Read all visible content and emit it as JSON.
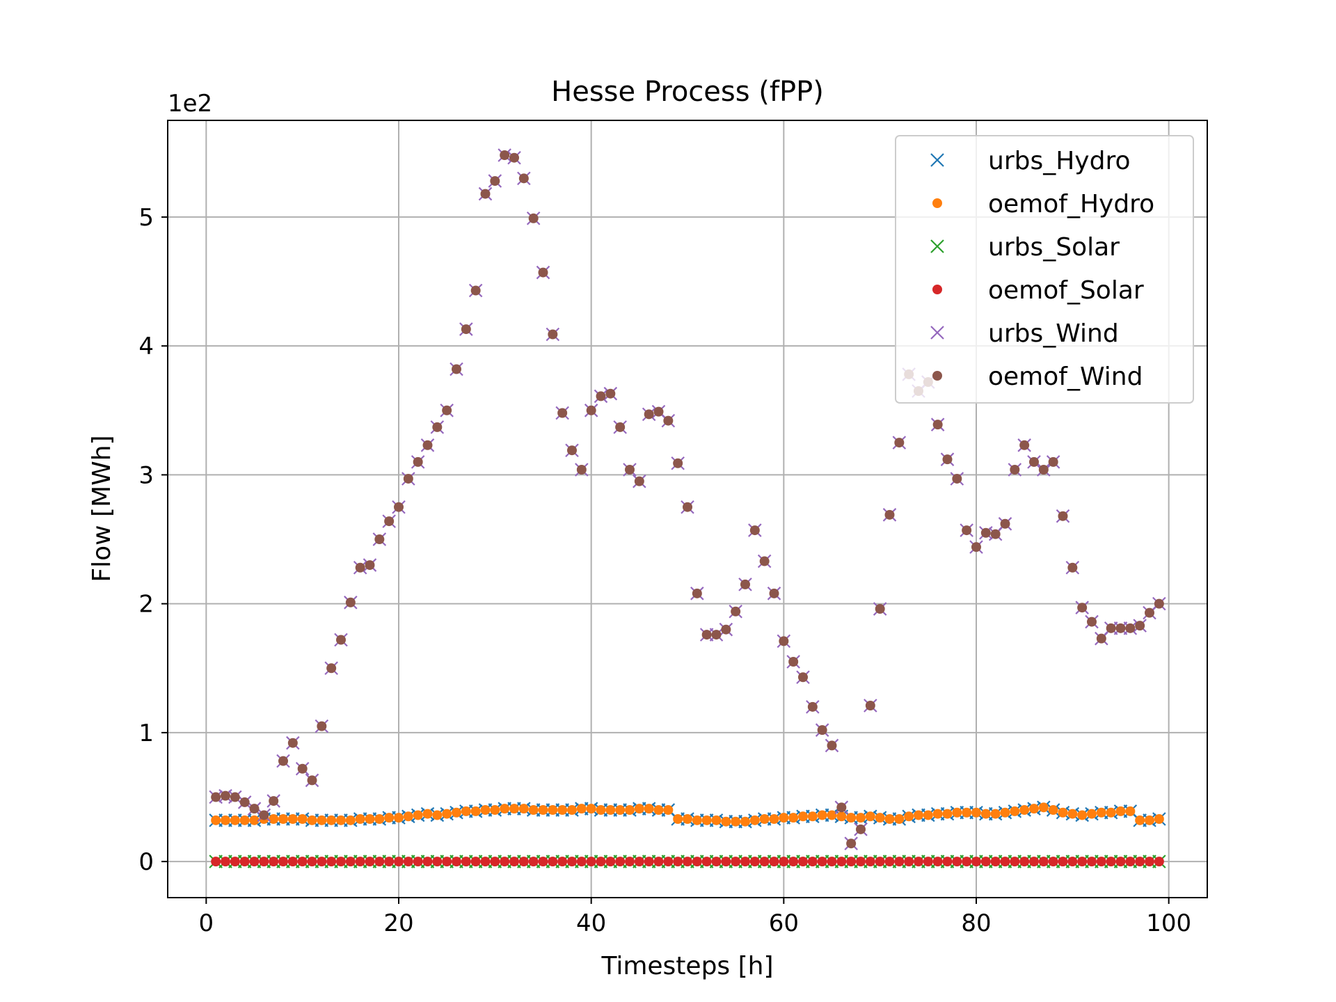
{
  "chart_data": {
    "type": "scatter",
    "title": "Hesse Process (fPP)",
    "xlabel": "Timesteps [h]",
    "ylabel": "Flow [MWh]",
    "y_offset_text": "1e2",
    "xlim": [
      -4,
      104
    ],
    "ylim": [
      -0.28,
      5.75
    ],
    "xticks": [
      0,
      20,
      40,
      60,
      80,
      100
    ],
    "yticks": [
      0,
      1,
      2,
      3,
      4,
      5
    ],
    "grid": true,
    "legend_position": "top-right",
    "x": [
      1,
      2,
      3,
      4,
      5,
      6,
      7,
      8,
      9,
      10,
      11,
      12,
      13,
      14,
      15,
      16,
      17,
      18,
      19,
      20,
      21,
      22,
      23,
      24,
      25,
      26,
      27,
      28,
      29,
      30,
      31,
      32,
      33,
      34,
      35,
      36,
      37,
      38,
      39,
      40,
      41,
      42,
      43,
      44,
      45,
      46,
      47,
      48,
      49,
      50,
      51,
      52,
      53,
      54,
      55,
      56,
      57,
      58,
      59,
      60,
      61,
      62,
      63,
      64,
      65,
      66,
      67,
      68,
      69,
      70,
      71,
      72,
      73,
      74,
      75,
      76,
      77,
      78,
      79,
      80,
      81,
      82,
      83,
      84,
      85,
      86,
      87,
      88,
      89,
      90,
      91,
      92,
      93,
      94,
      95,
      96,
      97,
      98,
      99
    ],
    "series": [
      {
        "name": "urbs_Hydro",
        "marker": "x",
        "color": "#1f77b4",
        "values": [
          0.32,
          0.32,
          0.32,
          0.32,
          0.32,
          0.33,
          0.33,
          0.33,
          0.33,
          0.33,
          0.32,
          0.32,
          0.32,
          0.32,
          0.32,
          0.33,
          0.33,
          0.33,
          0.34,
          0.34,
          0.35,
          0.36,
          0.37,
          0.36,
          0.37,
          0.38,
          0.39,
          0.39,
          0.4,
          0.4,
          0.41,
          0.41,
          0.41,
          0.4,
          0.4,
          0.4,
          0.4,
          0.4,
          0.41,
          0.41,
          0.4,
          0.4,
          0.4,
          0.4,
          0.41,
          0.41,
          0.4,
          0.4,
          0.33,
          0.33,
          0.32,
          0.32,
          0.32,
          0.31,
          0.31,
          0.31,
          0.32,
          0.33,
          0.33,
          0.34,
          0.34,
          0.35,
          0.35,
          0.36,
          0.36,
          0.35,
          0.34,
          0.34,
          0.35,
          0.34,
          0.33,
          0.33,
          0.35,
          0.36,
          0.36,
          0.37,
          0.37,
          0.38,
          0.38,
          0.38,
          0.37,
          0.37,
          0.38,
          0.39,
          0.4,
          0.41,
          0.42,
          0.4,
          0.38,
          0.37,
          0.36,
          0.37,
          0.38,
          0.38,
          0.39,
          0.39,
          0.32,
          0.32,
          0.33
        ]
      },
      {
        "name": "oemof_Hydro",
        "marker": "dot",
        "color": "#ff7f0e",
        "values": [
          0.32,
          0.32,
          0.32,
          0.32,
          0.32,
          0.33,
          0.33,
          0.33,
          0.33,
          0.33,
          0.32,
          0.32,
          0.32,
          0.32,
          0.32,
          0.33,
          0.33,
          0.33,
          0.34,
          0.34,
          0.35,
          0.36,
          0.37,
          0.36,
          0.37,
          0.38,
          0.39,
          0.39,
          0.4,
          0.4,
          0.41,
          0.41,
          0.41,
          0.4,
          0.4,
          0.4,
          0.4,
          0.4,
          0.41,
          0.41,
          0.4,
          0.4,
          0.4,
          0.4,
          0.41,
          0.41,
          0.4,
          0.4,
          0.33,
          0.33,
          0.32,
          0.32,
          0.32,
          0.31,
          0.31,
          0.31,
          0.32,
          0.33,
          0.33,
          0.34,
          0.34,
          0.35,
          0.35,
          0.36,
          0.36,
          0.35,
          0.34,
          0.34,
          0.35,
          0.34,
          0.33,
          0.33,
          0.35,
          0.36,
          0.36,
          0.37,
          0.37,
          0.38,
          0.38,
          0.38,
          0.37,
          0.37,
          0.38,
          0.39,
          0.4,
          0.41,
          0.42,
          0.4,
          0.38,
          0.37,
          0.36,
          0.37,
          0.38,
          0.38,
          0.39,
          0.39,
          0.32,
          0.32,
          0.33
        ]
      },
      {
        "name": "urbs_Solar",
        "marker": "x",
        "color": "#2ca02c",
        "values": [
          0,
          0,
          0,
          0,
          0,
          0,
          0,
          0,
          0,
          0,
          0,
          0,
          0,
          0,
          0,
          0,
          0,
          0,
          0,
          0,
          0,
          0,
          0,
          0,
          0,
          0,
          0,
          0,
          0,
          0,
          0,
          0,
          0,
          0,
          0,
          0,
          0,
          0,
          0,
          0,
          0,
          0,
          0,
          0,
          0,
          0,
          0,
          0,
          0,
          0,
          0,
          0,
          0,
          0,
          0,
          0,
          0,
          0,
          0,
          0,
          0,
          0,
          0,
          0,
          0,
          0,
          0,
          0,
          0,
          0,
          0,
          0,
          0,
          0,
          0,
          0,
          0,
          0,
          0,
          0,
          0,
          0,
          0,
          0,
          0,
          0,
          0,
          0,
          0,
          0,
          0,
          0,
          0,
          0,
          0,
          0,
          0,
          0,
          0
        ]
      },
      {
        "name": "oemof_Solar",
        "marker": "dot",
        "color": "#d62728",
        "values": [
          0,
          0,
          0,
          0,
          0,
          0,
          0,
          0,
          0,
          0,
          0,
          0,
          0,
          0,
          0,
          0,
          0,
          0,
          0,
          0,
          0,
          0,
          0,
          0,
          0,
          0,
          0,
          0,
          0,
          0,
          0,
          0,
          0,
          0,
          0,
          0,
          0,
          0,
          0,
          0,
          0,
          0,
          0,
          0,
          0,
          0,
          0,
          0,
          0,
          0,
          0,
          0,
          0,
          0,
          0,
          0,
          0,
          0,
          0,
          0,
          0,
          0,
          0,
          0,
          0,
          0,
          0,
          0,
          0,
          0,
          0,
          0,
          0,
          0,
          0,
          0,
          0,
          0,
          0,
          0,
          0,
          0,
          0,
          0,
          0,
          0,
          0,
          0,
          0,
          0,
          0,
          0,
          0,
          0,
          0,
          0,
          0,
          0,
          0
        ]
      },
      {
        "name": "urbs_Wind",
        "marker": "x",
        "color": "#9467bd",
        "values": [
          0.5,
          0.51,
          0.5,
          0.46,
          0.41,
          0.36,
          0.47,
          0.78,
          0.92,
          0.72,
          0.63,
          1.05,
          1.5,
          1.72,
          2.01,
          2.28,
          2.3,
          2.5,
          2.64,
          2.75,
          2.97,
          3.1,
          3.23,
          3.37,
          3.5,
          3.82,
          4.13,
          4.43,
          5.18,
          5.28,
          5.48,
          5.46,
          5.3,
          4.99,
          4.57,
          4.09,
          3.48,
          3.19,
          3.04,
          3.5,
          3.61,
          3.63,
          3.37,
          3.04,
          2.95,
          3.47,
          3.49,
          3.42,
          3.09,
          2.75,
          2.08,
          1.76,
          1.76,
          1.8,
          1.94,
          2.15,
          2.57,
          2.33,
          2.08,
          1.71,
          1.55,
          1.43,
          1.2,
          1.02,
          0.9,
          0.42,
          0.14,
          0.25,
          1.21,
          1.96,
          2.69,
          3.25,
          3.78,
          3.65,
          3.72,
          3.39,
          3.12,
          2.97,
          2.57,
          2.44,
          2.55,
          2.54,
          2.62,
          3.04,
          3.23,
          3.1,
          3.04,
          3.1,
          2.68,
          2.28,
          1.97,
          1.86,
          1.73,
          1.81,
          1.81,
          1.81,
          1.83,
          1.93,
          2.0
        ]
      },
      {
        "name": "oemof_Wind",
        "marker": "dot",
        "color": "#8c564b",
        "values": [
          0.5,
          0.51,
          0.5,
          0.46,
          0.41,
          0.36,
          0.47,
          0.78,
          0.92,
          0.72,
          0.63,
          1.05,
          1.5,
          1.72,
          2.01,
          2.28,
          2.3,
          2.5,
          2.64,
          2.75,
          2.97,
          3.1,
          3.23,
          3.37,
          3.5,
          3.82,
          4.13,
          4.43,
          5.18,
          5.28,
          5.48,
          5.46,
          5.3,
          4.99,
          4.57,
          4.09,
          3.48,
          3.19,
          3.04,
          3.5,
          3.61,
          3.63,
          3.37,
          3.04,
          2.95,
          3.47,
          3.49,
          3.42,
          3.09,
          2.75,
          2.08,
          1.76,
          1.76,
          1.8,
          1.94,
          2.15,
          2.57,
          2.33,
          2.08,
          1.71,
          1.55,
          1.43,
          1.2,
          1.02,
          0.9,
          0.42,
          0.14,
          0.25,
          1.21,
          1.96,
          2.69,
          3.25,
          3.78,
          3.65,
          3.72,
          3.39,
          3.12,
          2.97,
          2.57,
          2.44,
          2.55,
          2.54,
          2.62,
          3.04,
          3.23,
          3.1,
          3.04,
          3.1,
          2.68,
          2.28,
          1.97,
          1.86,
          1.73,
          1.81,
          1.81,
          1.81,
          1.83,
          1.93,
          2.0
        ]
      }
    ]
  }
}
